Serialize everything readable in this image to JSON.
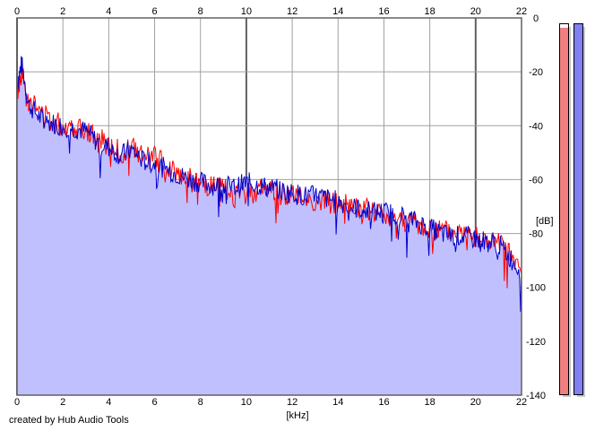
{
  "chart_data": {
    "type": "area",
    "title": "",
    "xlabel": "[kHz]",
    "ylabel": "[dB]",
    "xlim": [
      0,
      22
    ],
    "ylim": [
      -140,
      0
    ],
    "x_ticks": [
      0,
      2,
      4,
      6,
      8,
      10,
      12,
      14,
      16,
      18,
      20,
      22
    ],
    "y_ticks": [
      0,
      -20,
      -40,
      -60,
      -80,
      -100,
      -120,
      -140
    ],
    "grid": true,
    "series": [
      {
        "color": "#ff0000",
        "x": [
          0,
          0.2,
          0.5,
          1,
          1.5,
          2,
          2.5,
          3,
          3.5,
          4,
          4.5,
          5,
          5.5,
          6,
          6.5,
          7,
          7.5,
          8,
          8.5,
          9,
          9.5,
          10,
          10.5,
          11,
          11.5,
          12,
          12.5,
          13,
          13.5,
          14,
          14.5,
          15,
          15.5,
          16,
          16.5,
          17,
          17.5,
          18,
          18.5,
          19,
          19.5,
          20,
          20.5,
          21,
          21.5,
          22
        ],
        "values": [
          -28,
          -20,
          -30,
          -35,
          -38,
          -40,
          -40,
          -41,
          -45,
          -47,
          -50,
          -48,
          -52,
          -52,
          -55,
          -57,
          -60,
          -62,
          -63,
          -64,
          -66,
          -65,
          -64,
          -63,
          -65,
          -66,
          -67,
          -68,
          -68,
          -69,
          -70,
          -71,
          -72,
          -73,
          -74,
          -75,
          -77,
          -79,
          -79,
          -80,
          -80,
          -81,
          -83,
          -84,
          -88,
          -95
        ]
      },
      {
        "color": "#0000cc",
        "fill": "#c0c0ff",
        "x": [
          0,
          0.2,
          0.5,
          1,
          1.5,
          2,
          2.5,
          3,
          3.5,
          4,
          4.5,
          5,
          5.5,
          6,
          6.5,
          7,
          7.5,
          8,
          8.5,
          9,
          9.5,
          10,
          10.5,
          11,
          11.5,
          12,
          12.5,
          13,
          13.5,
          14,
          14.5,
          15,
          15.5,
          16,
          16.5,
          17,
          17.5,
          18,
          18.5,
          19,
          19.5,
          20,
          20.5,
          21,
          21.5,
          22
        ],
        "values": [
          -25,
          -17,
          -32,
          -37,
          -39,
          -40,
          -41,
          -42,
          -46,
          -48,
          -51,
          -49,
          -53,
          -54,
          -56,
          -58,
          -60,
          -61,
          -62,
          -62,
          -63,
          -61,
          -62,
          -63,
          -64,
          -65,
          -66,
          -66,
          -67,
          -68,
          -70,
          -71,
          -72,
          -72,
          -73,
          -74,
          -76,
          -78,
          -80,
          -81,
          -81,
          -82,
          -83,
          -84,
          -89,
          -94
        ]
      }
    ]
  },
  "credit": "created by Hub Audio Tools",
  "meters": [
    {
      "color": "#f08080",
      "level": 0.99
    },
    {
      "color": "#8080f0",
      "level": 1.0
    }
  ]
}
